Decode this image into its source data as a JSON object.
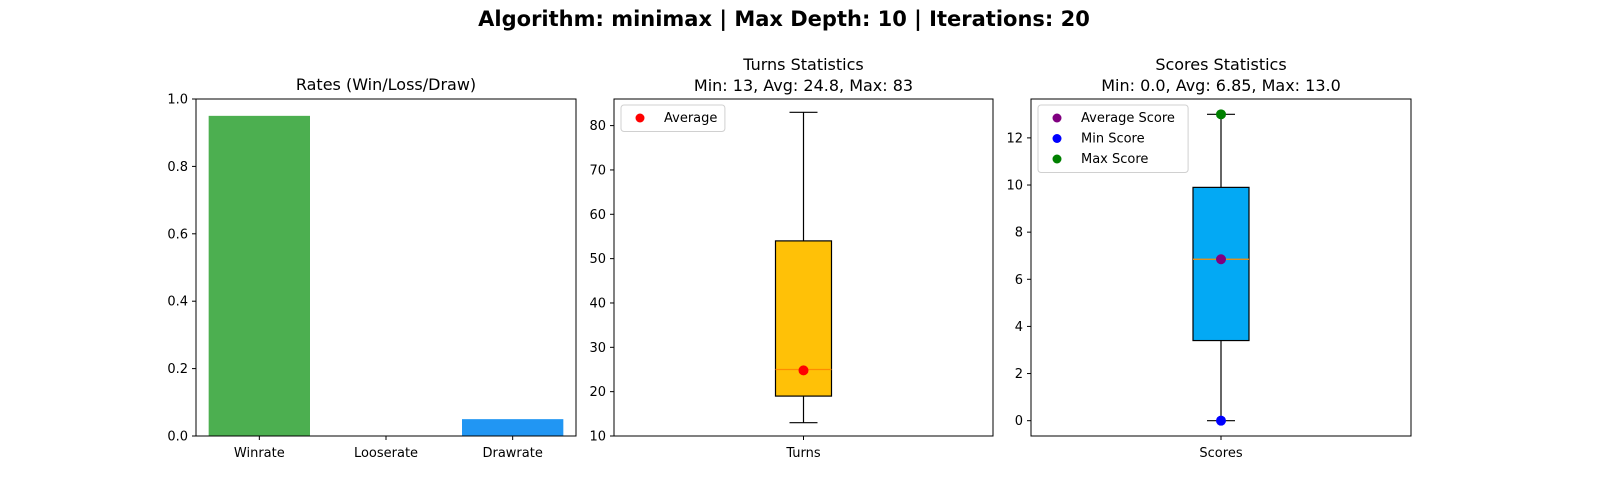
{
  "suptitle": "Algorithm: minimax | Max Depth: 10 | Iterations: 20",
  "chart_data": [
    {
      "type": "bar",
      "title": "Rates (Win/Loss/Draw)",
      "categories": [
        "Winrate",
        "Looserate",
        "Drawrate"
      ],
      "values": [
        0.95,
        0.0,
        0.05
      ],
      "colors": [
        "#4caf50",
        "#f44336",
        "#2196f3"
      ],
      "ylim": [
        0,
        1.0
      ],
      "yticks": [
        "0.0",
        "0.2",
        "0.4",
        "0.6",
        "0.8",
        "1.0"
      ],
      "ytick_values": [
        0,
        0.2,
        0.4,
        0.6,
        0.8,
        1.0
      ],
      "xlabel": "",
      "ylabel": ""
    },
    {
      "type": "box",
      "title": "Turns Statistics",
      "subtitle": "Min: 13, Avg: 24.8, Max: 83",
      "category": "Turns",
      "box": {
        "whisker_low": 13,
        "q1": 19,
        "median": 25,
        "q3": 54,
        "whisker_high": 83
      },
      "box_color": "#ffc107",
      "median_color": "#ff8c00",
      "points": [
        {
          "name": "Average",
          "value": 24.8,
          "color": "#ff0000"
        }
      ],
      "legend": [
        "Average"
      ],
      "legend_position": "top-left",
      "ylim": [
        10,
        86
      ],
      "yticks": [
        "10",
        "20",
        "30",
        "40",
        "50",
        "60",
        "70",
        "80"
      ],
      "ytick_values": [
        10,
        20,
        30,
        40,
        50,
        60,
        70,
        80
      ],
      "xlabel": "",
      "ylabel": ""
    },
    {
      "type": "box",
      "title": "Scores Statistics",
      "subtitle": "Min: 0.0, Avg: 6.85, Max: 13.0",
      "category": "Scores",
      "box": {
        "whisker_low": 0,
        "q1": 3.4,
        "median": 6.85,
        "q3": 9.9,
        "whisker_high": 13
      },
      "box_color": "#03a9f4",
      "median_color": "#ff8c00",
      "points": [
        {
          "name": "Average Score",
          "value": 6.85,
          "color": "#800080"
        },
        {
          "name": "Min Score",
          "value": 0.0,
          "color": "#0000ff"
        },
        {
          "name": "Max Score",
          "value": 13.0,
          "color": "#008000"
        }
      ],
      "legend": [
        "Average Score",
        "Min Score",
        "Max Score"
      ],
      "legend_position": "top-left",
      "ylim": [
        -0.65,
        13.65
      ],
      "yticks": [
        "0",
        "2",
        "4",
        "6",
        "8",
        "10",
        "12"
      ],
      "ytick_values": [
        0,
        2,
        4,
        6,
        8,
        10,
        12
      ],
      "xlabel": "",
      "ylabel": ""
    }
  ]
}
